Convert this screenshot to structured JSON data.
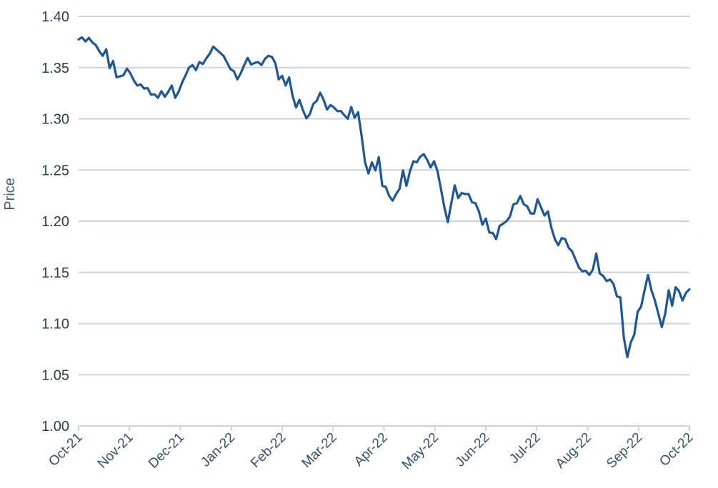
{
  "chart_data": {
    "type": "line",
    "title": "",
    "xlabel": "",
    "ylabel": "Price",
    "x_tick_labels": [
      "Oct-21",
      "Nov-21",
      "Dec-21",
      "Jan-22",
      "Feb-22",
      "Mar-22",
      "Apr-22",
      "May-22",
      "Jun-22",
      "Jul-22",
      "Aug-22",
      "Sep-22",
      "Oct-22"
    ],
    "y_ticks": [
      1.0,
      1.05,
      1.1,
      1.15,
      1.2,
      1.25,
      1.3,
      1.35,
      1.4
    ],
    "y_tick_labels": [
      "1.00",
      "1.05",
      "1.10",
      "1.15",
      "1.20",
      "1.25",
      "1.30",
      "1.35",
      "1.40"
    ],
    "ylim": [
      1.0,
      1.4
    ],
    "grid": "horizontal",
    "legend": "none",
    "colors": {
      "line": "#1d5798",
      "grid": "#c9d4de",
      "axis": "#c9d4de",
      "y_tick_label": "#293e52",
      "x_tick_label": "#33506e",
      "axis_title": "#3e5c7e"
    },
    "series": [
      {
        "name": "Price",
        "color": "#1d5798",
        "values": [
          1.3775,
          1.3795,
          1.3755,
          1.379,
          1.3745,
          1.372,
          1.366,
          1.3615,
          1.368,
          1.3495,
          1.3565,
          1.3405,
          1.3415,
          1.3425,
          1.349,
          1.3445,
          1.3375,
          1.3325,
          1.3335,
          1.3295,
          1.33,
          1.3235,
          1.324,
          1.3205,
          1.327,
          1.3215,
          1.3265,
          1.3325,
          1.3205,
          1.3265,
          1.3355,
          1.3425,
          1.35,
          1.3525,
          1.3475,
          1.3555,
          1.3535,
          1.359,
          1.3635,
          1.3705,
          1.3675,
          1.3645,
          1.3615,
          1.355,
          1.3485,
          1.3465,
          1.3385,
          1.3445,
          1.3525,
          1.3595,
          1.353,
          1.3545,
          1.3555,
          1.3525,
          1.3585,
          1.3615,
          1.3605,
          1.3545,
          1.3385,
          1.342,
          1.3325,
          1.3405,
          1.3225,
          1.311,
          1.3185,
          1.3085,
          1.3005,
          1.3045,
          1.3145,
          1.3175,
          1.3255,
          1.3185,
          1.309,
          1.3135,
          1.311,
          1.3075,
          1.3075,
          1.3035,
          1.3,
          1.3115,
          1.301,
          1.3065,
          1.2835,
          1.2575,
          1.2465,
          1.2575,
          1.2495,
          1.2625,
          1.2345,
          1.2335,
          1.2245,
          1.22,
          1.2265,
          1.2315,
          1.2495,
          1.2345,
          1.2485,
          1.2585,
          1.2575,
          1.263,
          1.2655,
          1.26,
          1.2525,
          1.2585,
          1.249,
          1.2315,
          1.2135,
          1.199,
          1.2175,
          1.235,
          1.2225,
          1.2275,
          1.2265,
          1.2265,
          1.2185,
          1.2175,
          1.2095,
          1.1965,
          1.2025,
          1.189,
          1.1885,
          1.1825,
          1.1955,
          1.1975,
          1.2,
          1.2045,
          1.2165,
          1.2175,
          1.2245,
          1.2165,
          1.2145,
          1.2075,
          1.2075,
          1.2215,
          1.2135,
          1.2055,
          1.2095,
          1.1935,
          1.1825,
          1.1765,
          1.1835,
          1.1825,
          1.174,
          1.1705,
          1.1625,
          1.1545,
          1.151,
          1.1515,
          1.1475,
          1.1525,
          1.1685,
          1.149,
          1.1465,
          1.1415,
          1.143,
          1.1385,
          1.1265,
          1.1255,
          1.086,
          1.0672,
          1.0815,
          1.089,
          1.1115,
          1.1165,
          1.1325,
          1.1475,
          1.1325,
          1.1225,
          1.1095,
          1.0965,
          1.11,
          1.1325,
          1.1175,
          1.1355,
          1.1315,
          1.1225,
          1.13,
          1.1335
        ]
      }
    ]
  }
}
